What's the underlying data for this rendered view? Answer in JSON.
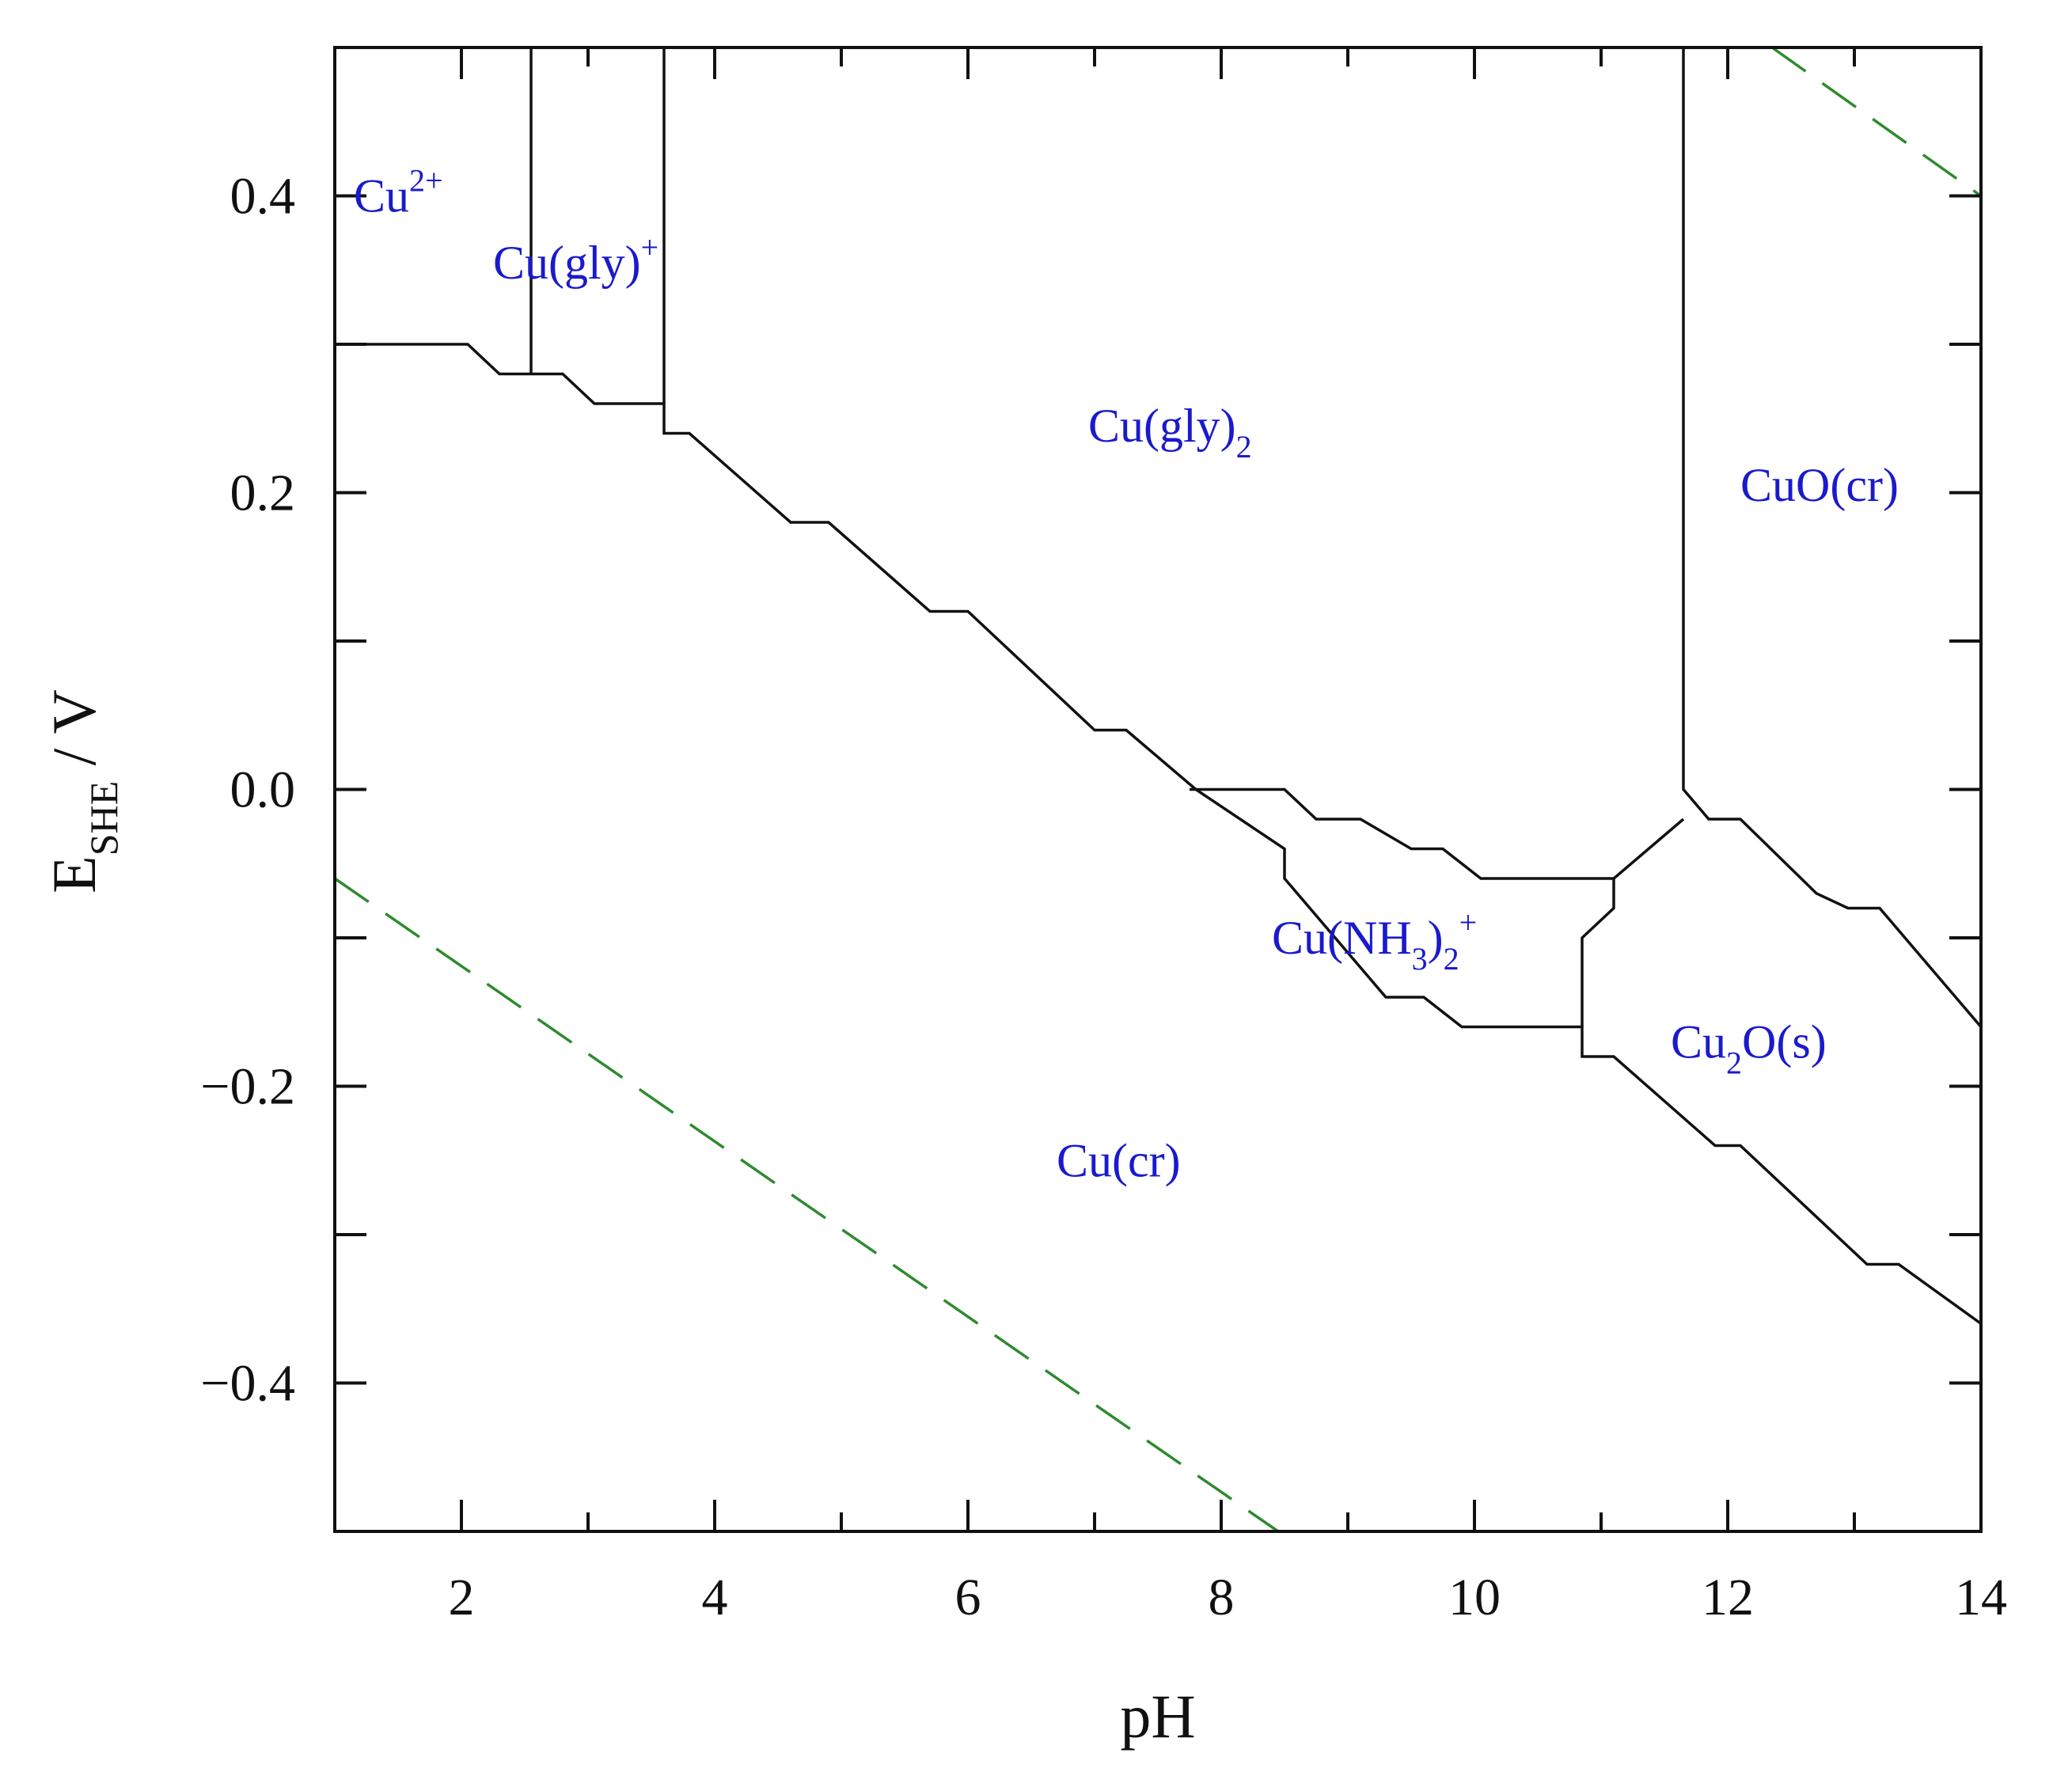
{
  "chart_data": {
    "type": "line",
    "title": "",
    "xlabel": "pH",
    "ylabel": {
      "main": "E",
      "subscript": "SHE",
      "unit": " / V"
    },
    "xlim": [
      1,
      14
    ],
    "ylim": [
      -0.5,
      0.5
    ],
    "x_ticks": [
      2,
      4,
      6,
      8,
      10,
      12,
      14
    ],
    "x_tick_labels": [
      "2",
      "4",
      "6",
      "8",
      "10",
      "12",
      "14"
    ],
    "x_minor_ticks": [
      3,
      5,
      7,
      9,
      11,
      13
    ],
    "y_ticks": [
      -0.4,
      -0.2,
      0.0,
      0.2,
      0.4
    ],
    "y_tick_labels": [
      "−0.4",
      "−0.2",
      "0.0",
      "0.2",
      "0.4"
    ],
    "y_minor_ticks": [
      -0.3,
      -0.1,
      0.1,
      0.3
    ],
    "grid": false,
    "colors": {
      "boundary": "#111111",
      "water_line": "#2e8b2e",
      "label": "#1a1acc"
    },
    "boundaries": [
      {
        "points": [
          [
            1.0,
            0.3
          ],
          [
            2.05,
            0.3
          ],
          [
            2.3,
            0.28
          ],
          [
            2.8,
            0.28
          ],
          [
            3.05,
            0.26
          ],
          [
            3.6,
            0.26
          ],
          [
            3.6,
            0.24
          ],
          [
            3.8,
            0.24
          ],
          [
            4.6,
            0.18
          ],
          [
            4.9,
            0.18
          ],
          [
            5.7,
            0.12
          ],
          [
            6.0,
            0.12
          ],
          [
            7.0,
            0.04
          ],
          [
            7.25,
            0.04
          ],
          [
            7.8,
            0.0
          ],
          [
            8.5,
            -0.04
          ],
          [
            8.5,
            -0.06
          ],
          [
            9.3,
            -0.14
          ],
          [
            9.6,
            -0.14
          ],
          [
            9.9,
            -0.16
          ],
          [
            10.85,
            -0.16
          ],
          [
            10.85,
            -0.18
          ],
          [
            11.1,
            -0.18
          ],
          [
            11.9,
            -0.24
          ],
          [
            12.1,
            -0.24
          ],
          [
            13.1,
            -0.32
          ],
          [
            13.35,
            -0.32
          ],
          [
            14.0,
            -0.36
          ]
        ]
      },
      {
        "points": [
          [
            2.55,
            0.5
          ],
          [
            2.55,
            0.28
          ]
        ]
      },
      {
        "points": [
          [
            3.6,
            0.5
          ],
          [
            3.6,
            0.26
          ]
        ]
      },
      {
        "points": [
          [
            11.65,
            0.5
          ],
          [
            11.65,
            0.0
          ],
          [
            11.85,
            -0.02
          ],
          [
            12.1,
            -0.02
          ],
          [
            12.7,
            -0.07
          ],
          [
            12.95,
            -0.08
          ],
          [
            13.2,
            -0.08
          ],
          [
            14.0,
            -0.16
          ]
        ]
      },
      {
        "points": [
          [
            7.75,
            0.0
          ],
          [
            8.5,
            0.0
          ],
          [
            8.75,
            -0.02
          ],
          [
            9.1,
            -0.02
          ],
          [
            9.5,
            -0.04
          ],
          [
            9.75,
            -0.04
          ],
          [
            10.05,
            -0.06
          ],
          [
            11.1,
            -0.06
          ]
        ]
      },
      {
        "points": [
          [
            11.65,
            -0.02
          ],
          [
            11.1,
            -0.06
          ],
          [
            11.1,
            -0.08
          ],
          [
            10.85,
            -0.1
          ],
          [
            10.85,
            -0.16
          ]
        ]
      }
    ],
    "water_lines": [
      {
        "points": [
          [
            1.0,
            -0.06
          ],
          [
            8.45,
            -0.5
          ]
        ]
      },
      {
        "points": [
          [
            12.35,
            0.5
          ],
          [
            14.0,
            0.4
          ]
        ]
      }
    ],
    "regions": [
      {
        "x": 1.15,
        "y": 0.4,
        "base": "Cu",
        "sup": "2+",
        "sub": "",
        "after": ""
      },
      {
        "x": 2.25,
        "y": 0.355,
        "base": "Cu(gly)",
        "sup": "+",
        "sub": "",
        "after": ""
      },
      {
        "x": 6.95,
        "y": 0.245,
        "base": "Cu(gly)",
        "sup": "",
        "sub": "2",
        "after": ""
      },
      {
        "x": 12.1,
        "y": 0.205,
        "base": "CuO(cr)",
        "sup": "",
        "sub": "",
        "after": ""
      },
      {
        "x": 8.4,
        "y": -0.1,
        "base": "Cu(NH",
        "sup": "",
        "sub": "3",
        "after": ")",
        "sub2": "2",
        "sup2": "+"
      },
      {
        "x": 11.55,
        "y": -0.17,
        "base": "Cu",
        "sup": "",
        "sub": "2",
        "after": "O(s)"
      },
      {
        "x": 6.7,
        "y": -0.25,
        "base": "Cu(cr)",
        "sup": "",
        "sub": "",
        "after": ""
      }
    ]
  }
}
